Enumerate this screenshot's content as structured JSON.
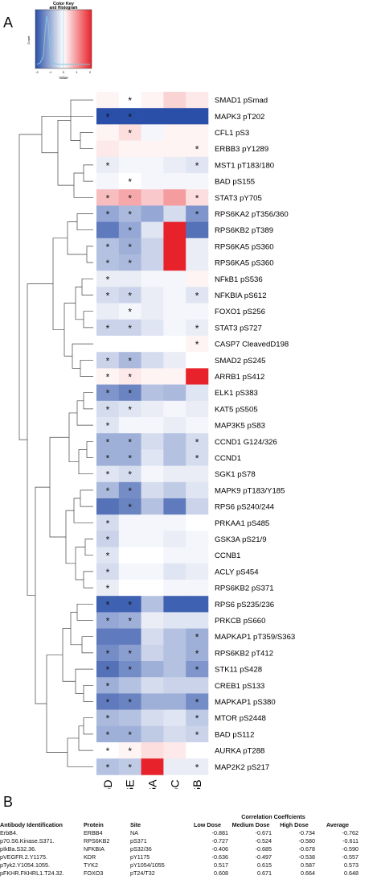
{
  "panels": {
    "a_label": "A",
    "b_label": "B"
  },
  "color_key": {
    "title": "Color Key",
    "subtitle": "and Histogram",
    "xlabel": "Value",
    "ylabel": "Count",
    "ticks": [
      "-2",
      "-1",
      "0",
      "1",
      "2"
    ],
    "colors": {
      "low": "#2a4fa8",
      "mid": "#ffffff",
      "high": "#e8222a"
    }
  },
  "chart_data": {
    "type": "heatmap",
    "columns": [
      "CGD",
      "CGE",
      "CGA",
      "CGC",
      "CGB"
    ],
    "rows": [
      "SMAD1 pSmad",
      "MAPK3 pT202",
      "CFL1 pS3",
      "ERBB3 pY1289",
      "MST1 pT183/180",
      "BAD pS155",
      "STAT3 pY705",
      "RPS6KA2 pT356/360",
      "RPS6KB2 pT389",
      "RPS6KA5 pS360",
      "RPS6KA5 pS360",
      "NFkB1 pS536",
      "NFKBIA pS612",
      "FOXO1 pS256",
      "STAT3 pS727",
      "CASP7 CleavedD198",
      "SMAD2 pS245",
      "ARRB1 pS412",
      "ELK1 pS383",
      "KAT5 pS505",
      "MAP3K5 pS83",
      "CCND1 G124/326",
      "CCND1",
      "SGK1 pS78",
      "MAPK9 pT183/Y185",
      "RPS6 pS240/244",
      "PRKAA1 pS485",
      "GSK3A pS21/9",
      "CCNB1",
      "ACLY pS454",
      "RPS6KB2 pS371",
      "RPS6 pS235/236",
      "PRKCB pS660",
      "MAPKAP1 pT359/S363",
      "RPS6KB2 pT412",
      "STK11 pS428",
      "CREB1 pS133",
      "MAPKAP1 pS380",
      "MTOR pS2448",
      "BAD pS112",
      "AURKA pT288",
      "MAP2K2 pS217"
    ],
    "values": [
      [
        0.1,
        0.0,
        0.1,
        0.4,
        0.2
      ],
      [
        -2.0,
        -2.0,
        -2.0,
        -2.0,
        -2.0
      ],
      [
        0.1,
        0.3,
        -0.1,
        0.1,
        0.1
      ],
      [
        0.2,
        0.1,
        0.1,
        0.1,
        0.1
      ],
      [
        -0.2,
        -0.1,
        -0.1,
        -0.2,
        -0.3
      ],
      [
        -0.1,
        0.0,
        -0.1,
        -0.1,
        -0.1
      ],
      [
        0.6,
        0.8,
        0.5,
        0.9,
        0.3
      ],
      [
        -1.0,
        -0.8,
        -1.0,
        -0.4,
        -1.2
      ],
      [
        -1.5,
        -1.0,
        -0.3,
        2.0,
        -1.6
      ],
      [
        -0.7,
        -0.9,
        -0.5,
        2.0,
        -0.2
      ],
      [
        -0.7,
        -0.8,
        -0.5,
        2.0,
        -0.2
      ],
      [
        -0.2,
        -0.2,
        -0.1,
        -0.1,
        0.1
      ],
      [
        -0.4,
        -0.5,
        -0.2,
        -0.1,
        -0.3
      ],
      [
        -0.2,
        -0.1,
        -0.2,
        -0.1,
        -0.1
      ],
      [
        -0.5,
        -0.5,
        -0.3,
        -0.1,
        -0.2
      ],
      [
        0.0,
        0.0,
        0.0,
        0.0,
        0.1
      ],
      [
        -0.5,
        -0.8,
        -0.4,
        -0.2,
        0.0
      ],
      [
        0.1,
        0.2,
        0.1,
        0.1,
        2.0
      ],
      [
        -1.2,
        -1.4,
        -0.7,
        -0.8,
        -0.3
      ],
      [
        -0.4,
        -0.3,
        -0.2,
        -0.1,
        -0.2
      ],
      [
        -0.3,
        -0.1,
        -0.1,
        -0.2,
        -0.1
      ],
      [
        -0.9,
        -0.9,
        -0.4,
        -0.7,
        -0.4
      ],
      [
        -0.9,
        -0.9,
        -0.3,
        -0.7,
        -0.4
      ],
      [
        -0.3,
        -0.4,
        -0.1,
        -0.2,
        -0.2
      ],
      [
        -0.8,
        -1.3,
        -0.4,
        -0.6,
        -0.3
      ],
      [
        -1.6,
        -1.4,
        -0.7,
        -1.5,
        -0.5
      ],
      [
        -0.4,
        -0.1,
        -0.1,
        -0.1,
        0.0
      ],
      [
        -0.5,
        -0.1,
        -0.1,
        -0.2,
        -0.1
      ],
      [
        -0.3,
        0.0,
        0.0,
        -0.1,
        -0.1
      ],
      [
        -0.4,
        -0.1,
        -0.1,
        -0.3,
        -0.2
      ],
      [
        -0.2,
        0.0,
        0.0,
        -0.1,
        -0.1
      ],
      [
        -1.8,
        -1.8,
        -0.7,
        -1.8,
        -1.8
      ],
      [
        -1.0,
        -0.9,
        -0.2,
        -0.3,
        -0.3
      ],
      [
        -1.5,
        -1.5,
        -0.4,
        -0.7,
        -0.9
      ],
      [
        -1.3,
        -1.1,
        -0.5,
        -0.7,
        -0.9
      ],
      [
        -1.6,
        -1.3,
        -0.9,
        -0.7,
        -1.2
      ],
      [
        -0.9,
        -0.7,
        -0.4,
        -0.5,
        -0.5
      ],
      [
        -1.5,
        -1.4,
        -0.9,
        -0.9,
        -1.3
      ],
      [
        -0.8,
        -0.7,
        -0.4,
        -0.3,
        -0.6
      ],
      [
        -0.9,
        -0.9,
        -0.6,
        -0.4,
        -0.5
      ],
      [
        0.0,
        0.1,
        0.3,
        0.2,
        0.0
      ],
      [
        -0.7,
        -0.6,
        2.0,
        -0.2,
        -0.2
      ]
    ],
    "significance": [
      [
        0,
        1,
        0,
        0,
        0
      ],
      [
        1,
        1,
        0,
        0,
        0
      ],
      [
        0,
        1,
        0,
        0,
        0
      ],
      [
        0,
        0,
        0,
        0,
        1
      ],
      [
        1,
        0,
        0,
        0,
        1
      ],
      [
        0,
        1,
        0,
        0,
        0
      ],
      [
        1,
        1,
        0,
        0,
        1
      ],
      [
        1,
        1,
        0,
        0,
        1
      ],
      [
        0,
        1,
        0,
        0,
        0
      ],
      [
        1,
        1,
        0,
        0,
        0
      ],
      [
        1,
        1,
        0,
        0,
        0
      ],
      [
        1,
        0,
        0,
        0,
        0
      ],
      [
        1,
        1,
        0,
        0,
        1
      ],
      [
        0,
        1,
        0,
        0,
        0
      ],
      [
        1,
        1,
        0,
        0,
        1
      ],
      [
        0,
        0,
        0,
        0,
        1
      ],
      [
        1,
        1,
        0,
        0,
        0
      ],
      [
        1,
        1,
        0,
        0,
        0
      ],
      [
        1,
        1,
        0,
        0,
        0
      ],
      [
        1,
        1,
        0,
        0,
        0
      ],
      [
        1,
        0,
        0,
        0,
        0
      ],
      [
        1,
        1,
        0,
        0,
        1
      ],
      [
        1,
        1,
        0,
        0,
        1
      ],
      [
        1,
        1,
        0,
        0,
        0
      ],
      [
        1,
        1,
        0,
        0,
        0
      ],
      [
        0,
        1,
        0,
        0,
        0
      ],
      [
        1,
        0,
        0,
        0,
        0
      ],
      [
        1,
        0,
        0,
        0,
        0
      ],
      [
        1,
        0,
        0,
        0,
        0
      ],
      [
        1,
        0,
        0,
        0,
        0
      ],
      [
        1,
        0,
        0,
        0,
        0
      ],
      [
        1,
        1,
        0,
        0,
        0
      ],
      [
        1,
        1,
        0,
        0,
        0
      ],
      [
        0,
        0,
        0,
        0,
        1
      ],
      [
        1,
        1,
        0,
        0,
        1
      ],
      [
        1,
        1,
        0,
        0,
        1
      ],
      [
        1,
        0,
        0,
        0,
        0
      ],
      [
        1,
        1,
        0,
        0,
        1
      ],
      [
        1,
        0,
        0,
        0,
        1
      ],
      [
        1,
        1,
        0,
        0,
        1
      ],
      [
        1,
        1,
        0,
        0,
        0
      ],
      [
        1,
        1,
        0,
        0,
        1
      ]
    ],
    "significance_marker": "*",
    "dendrogram": "row-clustering",
    "color_range": [
      -2,
      2
    ]
  },
  "table": {
    "headers": {
      "antibody": "Antibody Identification",
      "protein": "Protein",
      "site": "Site",
      "corr_group": "Correlation Coeffcients",
      "low": "Low Dose",
      "medium": "Medium Dose",
      "high": "High Dose",
      "average": "Average"
    },
    "rows": [
      {
        "antibody": "ErbB4.",
        "protein": "ERBB4",
        "site": "NA",
        "low": "-0.881",
        "medium": "-0.671",
        "high": "-0.734",
        "average": "-0.762"
      },
      {
        "antibody": "p70.S6.Kinase.S371.",
        "protein": "RPS6KB2",
        "site": "pS371",
        "low": "-0.727",
        "medium": "-0.524",
        "high": "-0.580",
        "average": "-0.611"
      },
      {
        "antibody": "pIkBa.S32.36.",
        "protein": "NFKBIA",
        "site": "pS32/36",
        "low": "-0.406",
        "medium": "-0.685",
        "high": "-0.678",
        "average": "-0.590"
      },
      {
        "antibody": "pVEGFR.2.Y1175.",
        "protein": "KDR",
        "site": "pY1175",
        "low": "-0.636",
        "medium": "-0.497",
        "high": "-0.538",
        "average": "-0.557"
      },
      {
        "antibody": "pTyk2.Y1054.1055.",
        "protein": "TYK2",
        "site": "pY1054/1055",
        "low": "0.517",
        "medium": "0.615",
        "high": "0.587",
        "average": "0.573"
      },
      {
        "antibody": "pFKHR.FKHRL1.T24.32.",
        "protein": "FOXO3",
        "site": "pT24/T32",
        "low": "0.608",
        "medium": "0.671",
        "high": "0.664",
        "average": "0.648"
      }
    ]
  }
}
